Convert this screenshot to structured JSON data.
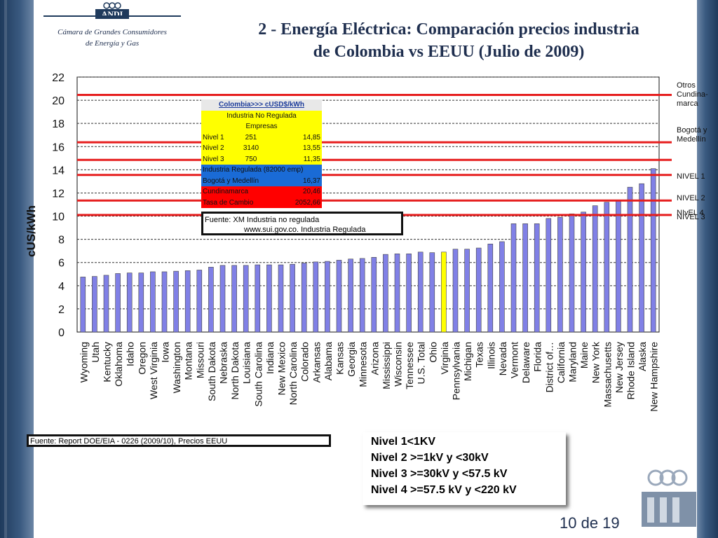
{
  "header": {
    "logo_text": "ANDI",
    "org_line1": "Cámara de Grandes Consumidores",
    "org_line2": "de Energía y Gas",
    "title_line1": "2 - Energía Eléctrica: Comparación precios industria",
    "title_line2": "de Colombia vs EEUU (Julio de 2009)"
  },
  "table": {
    "header": "Colombia>>> cUSD$/kWh",
    "sub1": "Industria No Regulada",
    "sub2": "Empresas",
    "rows": [
      {
        "label": "Nivel 1",
        "empresas": "251",
        "value": "14,85"
      },
      {
        "label": "Nivel 2",
        "empresas": "3140",
        "value": "13,55"
      },
      {
        "label": "Nivel 3",
        "empresas": "750",
        "value": "11,35"
      }
    ],
    "regulada": "Industria Regulada (82000 emp)",
    "bogota_label": "Bogotá y Medellín",
    "bogota_value": "16,37",
    "cundinamarca_label": "Cundinamarca",
    "cundinamarca_value": "20,46",
    "tasa_label": "Tasa de Cambio",
    "tasa_value": "2052,66"
  },
  "source_box": {
    "line1": "Fuente: XM Industria no regulada",
    "line2": "www.sui.gov.co. Industria Regulada"
  },
  "right_labels": {
    "otros": [
      "Otros",
      "Cundina-",
      "marca"
    ],
    "bogota": [
      "Bogotá y",
      "Medellín"
    ],
    "n1": "NIVEL 1",
    "n2": "NIVEL 2",
    "n3": "NIVEL 3",
    "n4": "NIvEL 4"
  },
  "footer": {
    "source": "Fuente:  Report DOE/EIA - 0226  (2009/10),  Precios EEUU",
    "nivel_defs": [
      "Nivel 1<1KV",
      "Nivel 2 >=1kV y <30kV",
      "Nivel 3 >=30kV y <57.5 kV",
      "Nivel 4 >=57.5 kV y <220 kV"
    ],
    "page": "10 de 19"
  },
  "colors": {
    "bar": "#8080e6",
    "highlight_bar": "#ffff00",
    "ref_line": "#e61e1e",
    "title": "#1f2f4f"
  },
  "chart_data": {
    "type": "bar",
    "ylabel": "cUS/kWh",
    "ylim": [
      0,
      22
    ],
    "yticks": [
      0,
      2,
      4,
      6,
      8,
      10,
      12,
      14,
      16,
      18,
      20,
      22
    ],
    "grid": "horizontal dashed",
    "categories": [
      "Wyoming",
      "Utah",
      "Kentucky",
      "Oklahoma",
      "Idaho",
      "Oregon",
      "West Virginia",
      "Iowa",
      "Washington",
      "Montana",
      "Missouri",
      "South Dakota",
      "Nebraska",
      "North Dakota",
      "Louisiana",
      "South Carolina",
      "Indiana",
      "New Mexico",
      "North Carolina",
      "Colorado",
      "Arkansas",
      "Alabama",
      "Kansas",
      "Georgia",
      "Minnesota",
      "Arizona",
      "Mississippi",
      "Wisconsin",
      "Tennessee",
      "U.S. Total",
      "Ohio",
      "Virginia",
      "Pennsylvania",
      "Michigan",
      "Texas",
      "Illinois",
      "Nevada",
      "Vermont",
      "Delaware",
      "Florida",
      "District of…",
      "California",
      "Maryland",
      "Maine",
      "New York",
      "Massachusetts",
      "New Jersey",
      "Rhode Island",
      "Alaska",
      "New Hampshire"
    ],
    "values": [
      4.75,
      4.8,
      4.9,
      5.05,
      5.1,
      5.1,
      5.2,
      5.2,
      5.25,
      5.3,
      5.35,
      5.6,
      5.75,
      5.75,
      5.75,
      5.8,
      5.8,
      5.8,
      5.85,
      5.95,
      6.05,
      6.1,
      6.2,
      6.3,
      6.35,
      6.45,
      6.7,
      6.75,
      6.75,
      6.9,
      6.85,
      6.9,
      7.15,
      7.15,
      7.25,
      7.6,
      7.8,
      9.35,
      9.35,
      9.35,
      9.8,
      9.9,
      10.2,
      10.35,
      10.9,
      11.2,
      11.3,
      12.5,
      12.8,
      14.1
    ],
    "highlight_category": "Virginia",
    "reference_lines": [
      {
        "name": "Otros Cundinamarca",
        "value": 20.46
      },
      {
        "name": "Bogotá y Medellín",
        "value": 16.37
      },
      {
        "name": "NIVEL 1",
        "value": 14.85
      },
      {
        "name": "NIVEL 2",
        "value": 13.55
      },
      {
        "name": "NIVEL 3",
        "value": 11.35
      },
      {
        "name": "NIvEL 4",
        "value": 10.1
      }
    ]
  }
}
